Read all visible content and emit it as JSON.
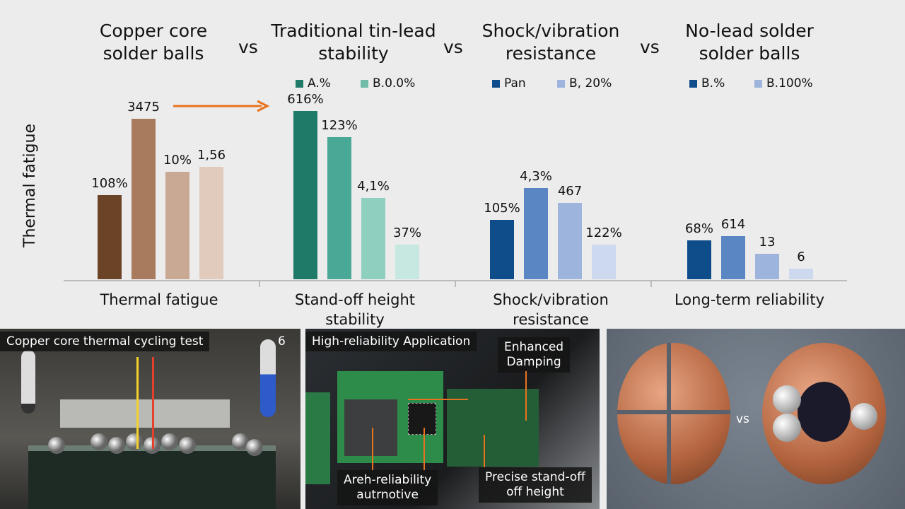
{
  "titles": [
    "Copper core\nsolder balls",
    "Traditional tin-lead\nstability",
    "Shock/vibration\nresistance",
    "No-lead solder\nsolder balls"
  ],
  "vs_label": "vs",
  "chart_data": {
    "type": "bar",
    "ylabel": "Thermal fatigue",
    "categories": [
      "Thermal fatigue",
      "Stand-off height stability",
      "Shock/vibration resistance",
      "Long-term reliability"
    ],
    "category_labels": [
      "Thermal fatigue",
      "Stand-off height\nstability",
      "Shock/vibration\nresistance",
      "Long-term reliability"
    ],
    "ylim": [
      0,
      250
    ],
    "grid": false,
    "legends": [
      [],
      [
        {
          "name": "A.%",
          "color": "#1f7a68"
        },
        {
          "name": "B.0.0%",
          "color": "#6fbcaa"
        }
      ],
      [
        {
          "name": "Pan",
          "color": "#0f4c8a"
        },
        {
          "name": "B, 20%",
          "color": "#9db4dc"
        }
      ],
      [
        {
          "name": "B.%",
          "color": "#0f4c8a"
        },
        {
          "name": "B.100%",
          "color": "#9db4dc"
        }
      ]
    ],
    "groups": [
      {
        "values": [
          119,
          227,
          152,
          159
        ],
        "labels": [
          "108%",
          "3475",
          "10%",
          "1,56"
        ],
        "colors": [
          "#6b4428",
          "#a87a5e",
          "#c9a994",
          "#e0cbbd"
        ]
      },
      {
        "values": [
          238,
          201,
          115,
          49
        ],
        "labels": [
          "616%",
          "123%",
          "4,1%",
          "37%"
        ],
        "colors": [
          "#1f7a68",
          "#4aa896",
          "#8fcfc0",
          "#c7e8e0"
        ]
      },
      {
        "values": [
          84,
          129,
          108,
          49
        ],
        "labels": [
          "105%",
          "4,3%",
          "467",
          "122%"
        ],
        "colors": [
          "#0f4c8a",
          "#5b86c4",
          "#9db4dc",
          "#ccd9ef"
        ]
      },
      {
        "values": [
          55,
          61,
          36,
          15
        ],
        "labels": [
          "68%",
          "614",
          "13",
          "6"
        ],
        "colors": [
          "#0f4c8a",
          "#5b86c4",
          "#9db4dc",
          "#ccd9ef"
        ]
      }
    ],
    "annotation_arrow_color": "#e8731e"
  },
  "photos": {
    "p1_caption": "Copper core thermal cycling test",
    "p1_thermo_value": "6",
    "p2_caption": "High-reliability Application",
    "p2_callouts": [
      "Enhanced\nDamping",
      "Areh-reliability\nautrnotive",
      "Precise stand-off\noff height"
    ],
    "p3_vs": "vs"
  }
}
